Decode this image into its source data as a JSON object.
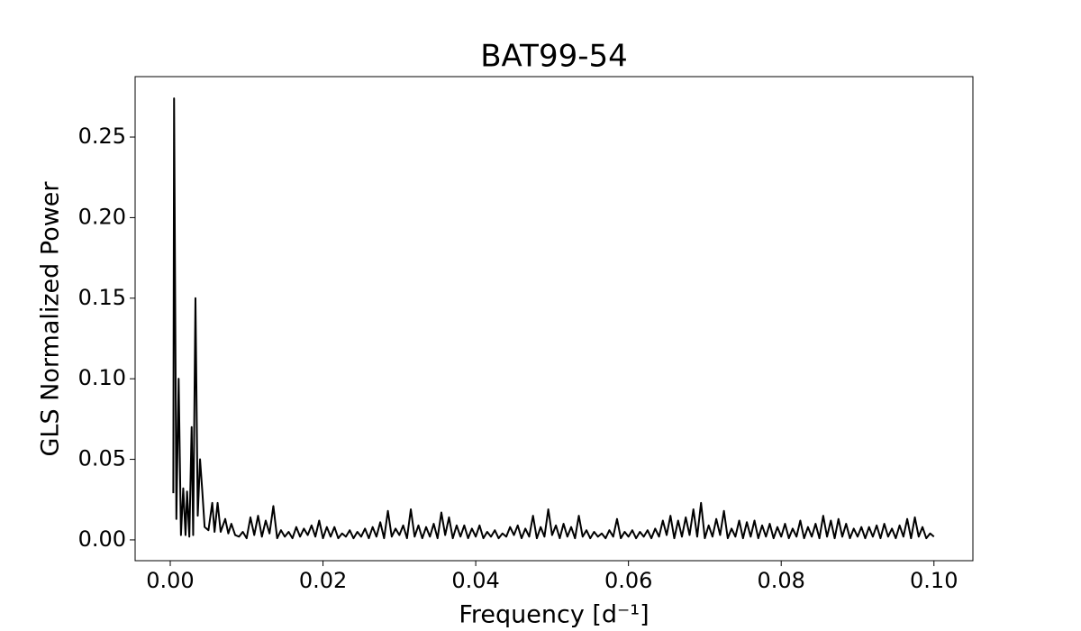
{
  "chart_data": {
    "type": "line",
    "title": "BAT99-54",
    "x_label": "Frequency [d⁻¹]",
    "y_label": "GLS Normalized Power",
    "color": "#000000",
    "xlim": [
      -0.0046,
      0.1051
    ],
    "ylim": [
      -0.0129,
      0.2875
    ],
    "xticks": [
      {
        "value": 0,
        "label": "0.00"
      },
      {
        "value": 0.02,
        "label": "0.02"
      },
      {
        "value": 0.04,
        "label": "0.04"
      },
      {
        "value": 0.06,
        "label": "0.06"
      },
      {
        "value": 0.08,
        "label": "0.08"
      },
      {
        "value": 0.1,
        "label": "0.10"
      }
    ],
    "yticks": [
      {
        "value": 0,
        "label": "0.00"
      },
      {
        "value": 0.05,
        "label": "0.05"
      },
      {
        "value": 0.1,
        "label": "0.10"
      },
      {
        "value": 0.15,
        "label": "0.15"
      },
      {
        "value": 0.2,
        "label": "0.20"
      },
      {
        "value": 0.25,
        "label": "0.25"
      }
    ],
    "x": [
      0.0004,
      0.0005,
      0.0008,
      0.0011,
      0.0014,
      0.0017,
      0.002,
      0.0022,
      0.0025,
      0.0028,
      0.003,
      0.0033,
      0.0036,
      0.0039,
      0.0042,
      0.0045,
      0.005,
      0.0055,
      0.0058,
      0.0062,
      0.0066,
      0.0072,
      0.0076,
      0.008,
      0.0085,
      0.009,
      0.0095,
      0.01,
      0.0105,
      0.011,
      0.0115,
      0.012,
      0.0125,
      0.013,
      0.0135,
      0.014,
      0.0145,
      0.015,
      0.0155,
      0.016,
      0.0165,
      0.017,
      0.0175,
      0.018,
      0.0185,
      0.019,
      0.0195,
      0.02,
      0.0205,
      0.021,
      0.0215,
      0.022,
      0.0225,
      0.023,
      0.0235,
      0.024,
      0.0245,
      0.025,
      0.0255,
      0.026,
      0.0265,
      0.027,
      0.0275,
      0.028,
      0.0285,
      0.029,
      0.0295,
      0.03,
      0.0305,
      0.031,
      0.0315,
      0.032,
      0.0325,
      0.033,
      0.0335,
      0.034,
      0.0345,
      0.035,
      0.0355,
      0.036,
      0.0365,
      0.037,
      0.0375,
      0.038,
      0.0385,
      0.039,
      0.0395,
      0.04,
      0.0405,
      0.041,
      0.0415,
      0.042,
      0.0425,
      0.043,
      0.0435,
      0.044,
      0.0445,
      0.045,
      0.0455,
      0.046,
      0.0465,
      0.047,
      0.0475,
      0.048,
      0.0485,
      0.049,
      0.0495,
      0.05,
      0.0505,
      0.051,
      0.0515,
      0.052,
      0.0525,
      0.053,
      0.0535,
      0.054,
      0.0545,
      0.055,
      0.0555,
      0.056,
      0.0565,
      0.057,
      0.0575,
      0.058,
      0.0585,
      0.059,
      0.0595,
      0.06,
      0.0605,
      0.061,
      0.0615,
      0.062,
      0.0625,
      0.063,
      0.0635,
      0.064,
      0.0645,
      0.065,
      0.0655,
      0.066,
      0.0665,
      0.067,
      0.0675,
      0.068,
      0.0685,
      0.069,
      0.0695,
      0.07,
      0.0705,
      0.071,
      0.0715,
      0.072,
      0.0725,
      0.073,
      0.0735,
      0.074,
      0.0745,
      0.075,
      0.0755,
      0.076,
      0.0765,
      0.077,
      0.0775,
      0.078,
      0.0785,
      0.079,
      0.0795,
      0.08,
      0.0805,
      0.081,
      0.0815,
      0.082,
      0.0825,
      0.083,
      0.0835,
      0.084,
      0.0845,
      0.085,
      0.0855,
      0.086,
      0.0865,
      0.087,
      0.0875,
      0.088,
      0.0885,
      0.089,
      0.0895,
      0.09,
      0.0905,
      0.091,
      0.0915,
      0.092,
      0.0925,
      0.093,
      0.0935,
      0.094,
      0.0945,
      0.095,
      0.0955,
      0.096,
      0.0965,
      0.097,
      0.0975,
      0.098,
      0.0985,
      0.099,
      0.0995,
      0.1
    ],
    "values": [
      0.029,
      0.274,
      0.013,
      0.1,
      0.003,
      0.032,
      0.003,
      0.03,
      0.002,
      0.07,
      0.003,
      0.15,
      0.015,
      0.05,
      0.03,
      0.008,
      0.006,
      0.023,
      0.005,
      0.023,
      0.005,
      0.013,
      0.004,
      0.01,
      0.003,
      0.002,
      0.005,
      0.001,
      0.014,
      0.003,
      0.015,
      0.002,
      0.012,
      0.004,
      0.021,
      0.001,
      0.006,
      0.002,
      0.005,
      0.001,
      0.008,
      0.002,
      0.007,
      0.003,
      0.009,
      0.002,
      0.012,
      0.001,
      0.008,
      0.002,
      0.008,
      0.001,
      0.004,
      0.002,
      0.006,
      0.001,
      0.005,
      0.002,
      0.007,
      0.001,
      0.008,
      0.002,
      0.011,
      0.001,
      0.018,
      0.002,
      0.007,
      0.003,
      0.009,
      0.001,
      0.019,
      0.002,
      0.009,
      0.001,
      0.008,
      0.002,
      0.01,
      0.001,
      0.017,
      0.003,
      0.014,
      0.001,
      0.009,
      0.002,
      0.009,
      0.001,
      0.007,
      0.002,
      0.009,
      0.001,
      0.005,
      0.002,
      0.006,
      0.001,
      0.004,
      0.002,
      0.008,
      0.003,
      0.009,
      0.001,
      0.007,
      0.002,
      0.015,
      0.001,
      0.008,
      0.002,
      0.019,
      0.003,
      0.009,
      0.001,
      0.01,
      0.002,
      0.008,
      0.001,
      0.015,
      0.002,
      0.006,
      0.001,
      0.005,
      0.002,
      0.004,
      0.001,
      0.006,
      0.002,
      0.013,
      0.001,
      0.005,
      0.002,
      0.006,
      0.001,
      0.005,
      0.002,
      0.006,
      0.001,
      0.007,
      0.002,
      0.012,
      0.003,
      0.015,
      0.001,
      0.012,
      0.002,
      0.014,
      0.003,
      0.019,
      0.002,
      0.023,
      0.001,
      0.009,
      0.002,
      0.013,
      0.003,
      0.018,
      0.001,
      0.007,
      0.002,
      0.012,
      0.001,
      0.011,
      0.002,
      0.012,
      0.001,
      0.009,
      0.002,
      0.01,
      0.001,
      0.008,
      0.002,
      0.01,
      0.001,
      0.007,
      0.002,
      0.012,
      0.001,
      0.008,
      0.002,
      0.01,
      0.001,
      0.015,
      0.002,
      0.012,
      0.001,
      0.013,
      0.002,
      0.01,
      0.001,
      0.007,
      0.002,
      0.008,
      0.001,
      0.008,
      0.002,
      0.009,
      0.001,
      0.01,
      0.002,
      0.007,
      0.001,
      0.009,
      0.002,
      0.013,
      0.001,
      0.014,
      0.002,
      0.008,
      0.001,
      0.004,
      0.002
    ]
  }
}
